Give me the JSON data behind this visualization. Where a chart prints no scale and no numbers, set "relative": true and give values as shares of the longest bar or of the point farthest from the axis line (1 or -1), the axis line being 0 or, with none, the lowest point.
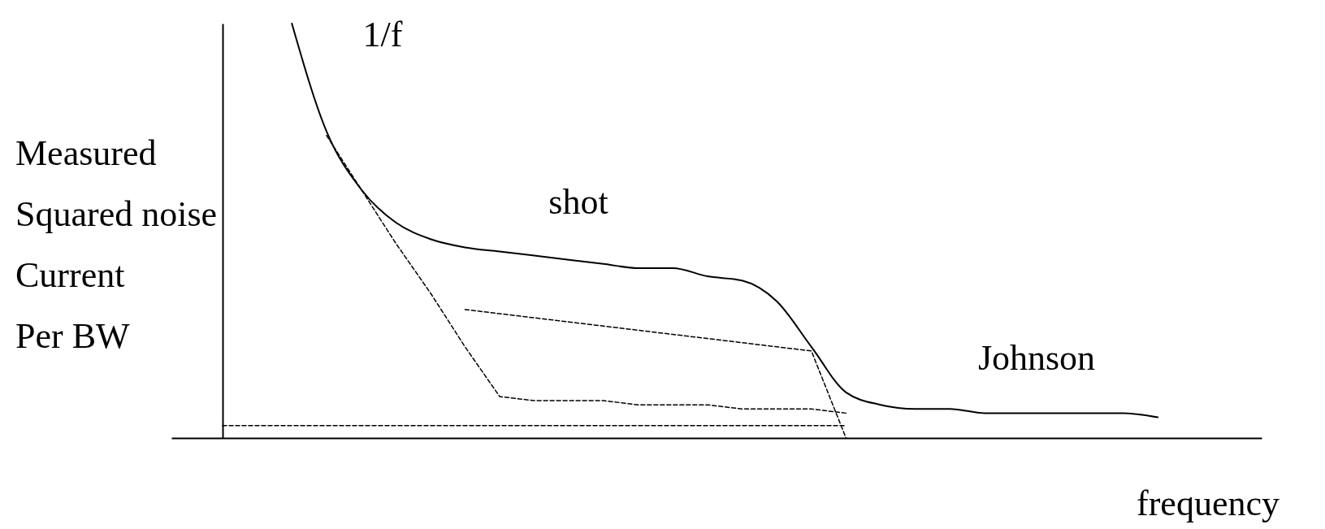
{
  "chart_data": {
    "type": "line",
    "relative": true,
    "xlabel": "frequency",
    "ylabel": "Measured\nSquared noise\nCurrent\nPer BW",
    "annotations": [
      "1/f",
      "shot",
      "Johnson"
    ],
    "categories": [
      null,
      null,
      null,
      null,
      null,
      null,
      null,
      null,
      null,
      null,
      null,
      null,
      null,
      null,
      null,
      null,
      null,
      null,
      null,
      null,
      null,
      null,
      null,
      null,
      null,
      null,
      null,
      null,
      null,
      null,
      null
    ],
    "series": [
      {
        "color": "#000000",
        "line_style": "solid",
        "values": [
          null,
          null,
          1,
          0.74,
          0.6,
          0.52,
          0.48,
          0.46,
          0.45,
          0.44,
          0.43,
          0.42,
          0.41,
          0.41,
          0.39,
          0.38,
          0.33,
          0.22,
          0.11,
          0.08,
          0.07,
          0.07,
          0.06,
          0.06,
          0.06,
          0.06,
          0.06,
          0.05,
          null,
          null,
          null
        ]
      },
      {
        "color": "#000000",
        "line_style": "dashed",
        "values": [
          null,
          null,
          null,
          0.73,
          0.6,
          0.47,
          0.35,
          0.22,
          0.1,
          0.09,
          0.09,
          0.09,
          0.08,
          0.08,
          0.08,
          0.07,
          0.07,
          0.07,
          0.06,
          null,
          null,
          null,
          null,
          null,
          null,
          null,
          null,
          null,
          null,
          null,
          null
        ]
      },
      {
        "color": "#000000",
        "line_style": "dashed",
        "values": [
          null,
          null,
          null,
          null,
          null,
          null,
          null,
          0.31,
          0.3,
          0.29,
          0.28,
          0.27,
          0.26,
          0.25,
          0.24,
          0.23,
          0.22,
          0.21,
          0,
          null,
          null,
          null,
          null,
          null,
          null,
          null,
          null,
          null,
          null,
          null,
          null
        ]
      },
      {
        "color": "#000000",
        "line_style": "dashed",
        "values": [
          0.03,
          0.03,
          0.03,
          0.03,
          0.03,
          0.03,
          0.03,
          0.03,
          0.03,
          0.03,
          0.03,
          0.03,
          0.03,
          0.03,
          0.03,
          0.03,
          0.03,
          0.03,
          0.03,
          null,
          null,
          null,
          null,
          null,
          null,
          null,
          null,
          null,
          null,
          null,
          null
        ]
      }
    ]
  }
}
